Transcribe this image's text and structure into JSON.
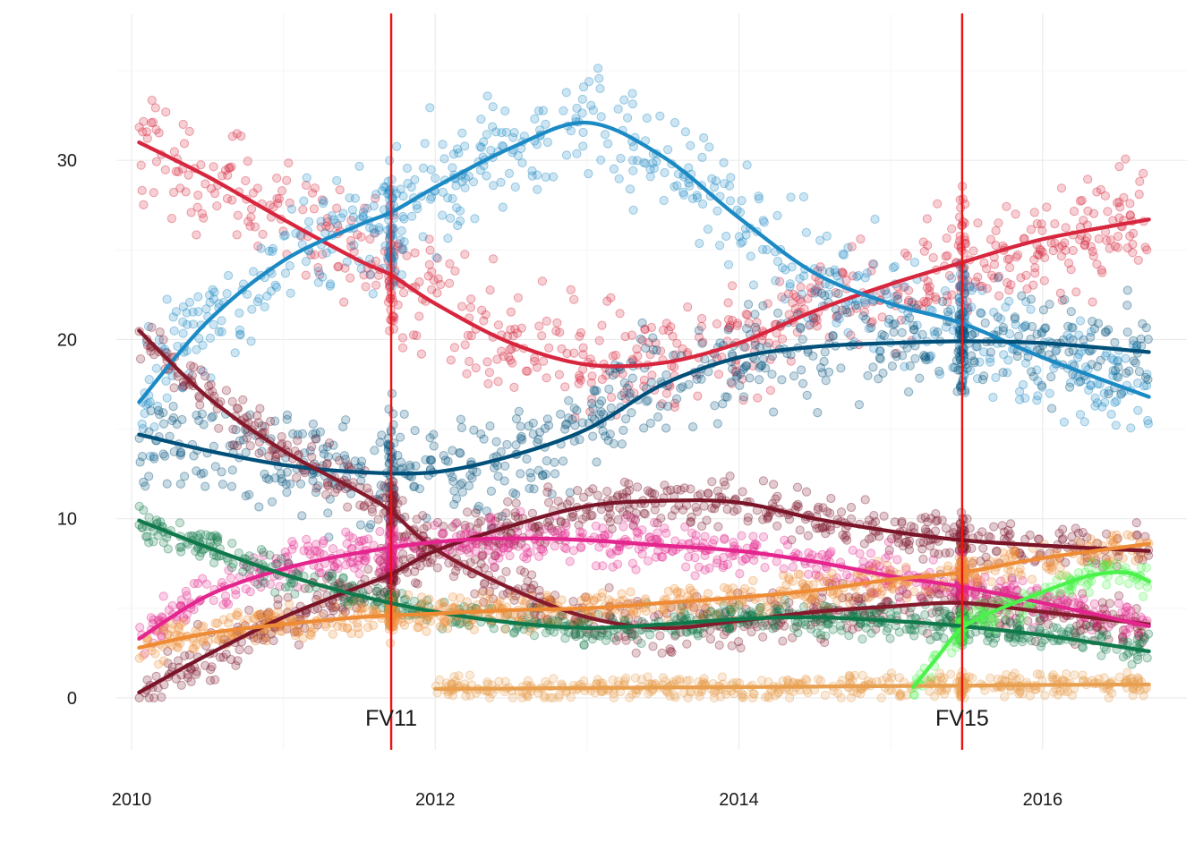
{
  "chart_data": {
    "type": "scatter",
    "title": "",
    "xlabel": "",
    "ylabel": "",
    "xlim": [
      2009.9,
      2016.95
    ],
    "ylim": [
      -2.9,
      38.2
    ],
    "x_ticks": [
      2010,
      2012,
      2014,
      2016
    ],
    "y_ticks": [
      0,
      10,
      20,
      30
    ],
    "grid": true,
    "legend": "none",
    "events": [
      {
        "label": "FV11",
        "x": 2011.71
      },
      {
        "label": "FV15",
        "x": 2015.47
      }
    ],
    "series": [
      {
        "color": "#d7263d",
        "smooth": [
          [
            2010.05,
            31.0
          ],
          [
            2010.5,
            29.1
          ],
          [
            2011,
            26.7
          ],
          [
            2011.5,
            24.4
          ],
          [
            2011.71,
            23.6
          ],
          [
            2012,
            22.0
          ],
          [
            2012.5,
            19.8
          ],
          [
            2013,
            18.6
          ],
          [
            2013.5,
            18.7
          ],
          [
            2014,
            19.8
          ],
          [
            2014.5,
            21.6
          ],
          [
            2015,
            23.1
          ],
          [
            2015.47,
            24.3
          ],
          [
            2016,
            25.6
          ],
          [
            2016.7,
            26.7
          ]
        ]
      },
      {
        "color": "#1b8ac4",
        "smooth": [
          [
            2010.05,
            16.5
          ],
          [
            2010.5,
            21.0
          ],
          [
            2011,
            24.4
          ],
          [
            2011.5,
            26.4
          ],
          [
            2011.71,
            27.1
          ],
          [
            2012,
            28.5
          ],
          [
            2012.5,
            30.7
          ],
          [
            2013,
            32.1
          ],
          [
            2013.5,
            30.2
          ],
          [
            2014,
            26.8
          ],
          [
            2014.5,
            23.7
          ],
          [
            2015,
            22.0
          ],
          [
            2015.47,
            20.9
          ],
          [
            2016,
            19.0
          ],
          [
            2016.7,
            16.8
          ]
        ]
      },
      {
        "color": "#00507a",
        "smooth": [
          [
            2010.05,
            14.7
          ],
          [
            2010.5,
            13.8
          ],
          [
            2011,
            13.0
          ],
          [
            2011.5,
            12.6
          ],
          [
            2012,
            12.6
          ],
          [
            2012.5,
            13.5
          ],
          [
            2013,
            15.0
          ],
          [
            2013.5,
            17.5
          ],
          [
            2014,
            19.0
          ],
          [
            2014.5,
            19.6
          ],
          [
            2015,
            19.8
          ],
          [
            2015.47,
            19.9
          ],
          [
            2016,
            19.8
          ],
          [
            2016.7,
            19.3
          ]
        ]
      },
      {
        "color": "#841a2c",
        "smooth": [
          [
            2010.05,
            20.5
          ],
          [
            2010.5,
            16.8
          ],
          [
            2011,
            13.8
          ],
          [
            2011.5,
            11.5
          ],
          [
            2011.71,
            10.4
          ],
          [
            2012,
            8.3
          ],
          [
            2012.5,
            6.1
          ],
          [
            2013,
            4.5
          ],
          [
            2013.5,
            3.9
          ],
          [
            2014,
            4.3
          ],
          [
            2014.5,
            4.8
          ],
          [
            2015,
            5.1
          ],
          [
            2015.47,
            5.3
          ],
          [
            2016,
            4.8
          ],
          [
            2016.7,
            4.1
          ]
        ]
      },
      {
        "color": "#7a1428",
        "smooth": [
          [
            2010.05,
            0.3
          ],
          [
            2010.5,
            2.4
          ],
          [
            2011,
            4.5
          ],
          [
            2011.5,
            6.2
          ],
          [
            2011.71,
            6.9
          ],
          [
            2012,
            8.2
          ],
          [
            2012.5,
            9.6
          ],
          [
            2013,
            10.7
          ],
          [
            2013.5,
            11.0
          ],
          [
            2014,
            10.9
          ],
          [
            2014.5,
            10.0
          ],
          [
            2015,
            9.3
          ],
          [
            2015.47,
            8.8
          ],
          [
            2016,
            8.5
          ],
          [
            2016.7,
            8.2
          ]
        ]
      },
      {
        "color": "#e3258d",
        "smooth": [
          [
            2010.05,
            3.3
          ],
          [
            2010.5,
            5.7
          ],
          [
            2011,
            7.2
          ],
          [
            2011.5,
            8.1
          ],
          [
            2012,
            8.7
          ],
          [
            2012.5,
            8.9
          ],
          [
            2013,
            8.8
          ],
          [
            2013.5,
            8.5
          ],
          [
            2014,
            8.2
          ],
          [
            2014.5,
            7.6
          ],
          [
            2015,
            6.8
          ],
          [
            2015.47,
            6.2
          ],
          [
            2016,
            5.3
          ],
          [
            2016.7,
            4.0
          ]
        ]
      },
      {
        "color": "#10794b",
        "smooth": [
          [
            2010.05,
            9.9
          ],
          [
            2010.5,
            8.4
          ],
          [
            2011,
            6.9
          ],
          [
            2011.5,
            5.7
          ],
          [
            2012,
            4.8
          ],
          [
            2012.5,
            4.2
          ],
          [
            2013,
            3.9
          ],
          [
            2013.5,
            4.1
          ],
          [
            2014,
            4.4
          ],
          [
            2014.5,
            4.5
          ],
          [
            2015,
            4.3
          ],
          [
            2015.47,
            4.0
          ],
          [
            2016,
            3.5
          ],
          [
            2016.7,
            2.6
          ]
        ]
      },
      {
        "color": "#ee8b35",
        "smooth": [
          [
            2010.05,
            2.8
          ],
          [
            2010.5,
            3.6
          ],
          [
            2011,
            4.1
          ],
          [
            2011.5,
            4.5
          ],
          [
            2012,
            4.7
          ],
          [
            2012.5,
            4.9
          ],
          [
            2013,
            5.0
          ],
          [
            2013.5,
            5.3
          ],
          [
            2014,
            5.6
          ],
          [
            2014.5,
            6.0
          ],
          [
            2015,
            6.6
          ],
          [
            2015.47,
            7.0
          ],
          [
            2016,
            7.8
          ],
          [
            2016.7,
            8.6
          ]
        ]
      },
      {
        "color": "#e8a050",
        "smooth": [
          [
            2012.0,
            0.5
          ],
          [
            2012.5,
            0.52
          ],
          [
            2013,
            0.55
          ],
          [
            2013.5,
            0.58
          ],
          [
            2014,
            0.6
          ],
          [
            2014.5,
            0.63
          ],
          [
            2015,
            0.66
          ],
          [
            2015.47,
            0.68
          ],
          [
            2016,
            0.72
          ],
          [
            2016.7,
            0.75
          ]
        ]
      },
      {
        "color": "#4cf24c",
        "smooth": [
          [
            2015.15,
            0.6
          ],
          [
            2015.3,
            2.2
          ],
          [
            2015.47,
            3.9
          ],
          [
            2015.7,
            4.9
          ],
          [
            2016,
            5.9
          ],
          [
            2016.3,
            6.8
          ],
          [
            2016.55,
            7.0
          ],
          [
            2016.7,
            6.5
          ]
        ]
      }
    ]
  }
}
